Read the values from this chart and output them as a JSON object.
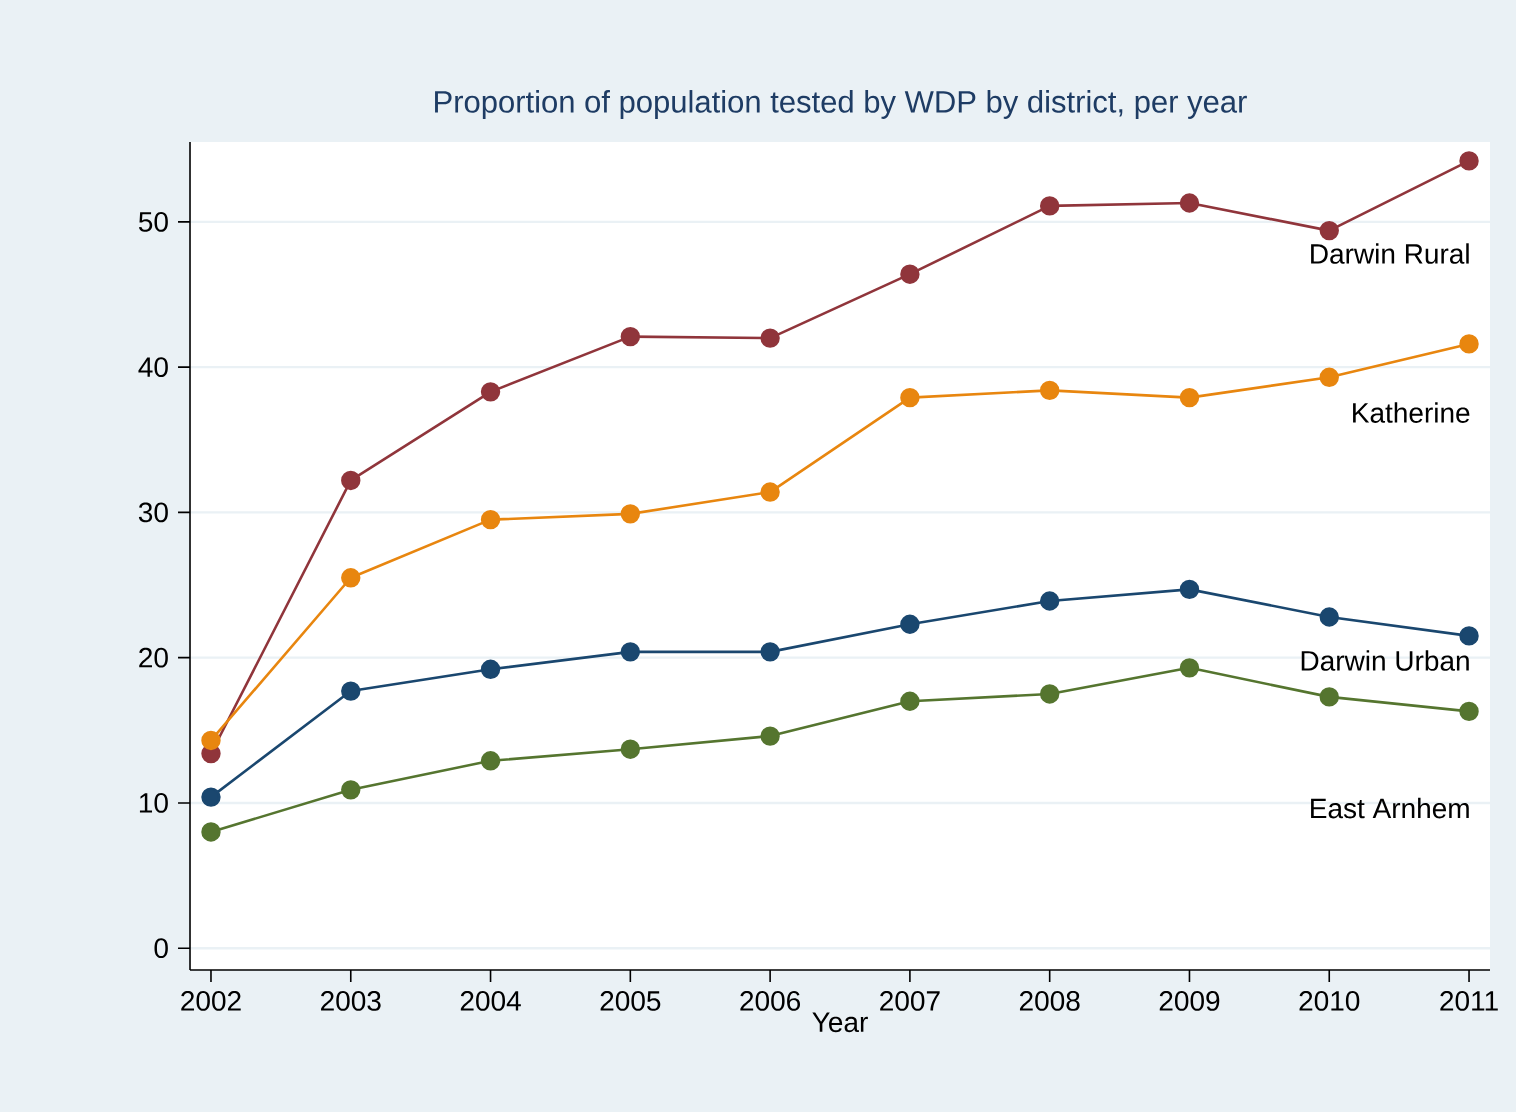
{
  "chart_data": {
    "type": "line",
    "title": "Proportion of population tested by WDP by district, per year",
    "xlabel": "Year",
    "x": [
      2002,
      2003,
      2004,
      2005,
      2006,
      2007,
      2008,
      2009,
      2010,
      2011
    ],
    "series": [
      {
        "name": "Darwin Rural",
        "color": "#90353b",
        "values": [
          13.4,
          32.2,
          38.3,
          42.1,
          42.0,
          46.4,
          51.1,
          51.3,
          49.4,
          54.2
        ]
      },
      {
        "name": "Katherine",
        "color": "#e8860f",
        "values": [
          14.3,
          25.5,
          29.5,
          29.9,
          31.4,
          37.9,
          38.4,
          37.9,
          39.3,
          41.6
        ]
      },
      {
        "name": "Darwin Urban",
        "color": "#1a476f",
        "values": [
          10.4,
          17.7,
          19.2,
          20.4,
          20.4,
          22.3,
          23.9,
          24.7,
          22.8,
          21.5
        ]
      },
      {
        "name": "East Arnhem",
        "color": "#55752f",
        "values": [
          8.0,
          10.9,
          12.9,
          13.7,
          14.6,
          17.0,
          17.5,
          19.3,
          17.3,
          16.3
        ]
      }
    ],
    "xlim": [
      2001.85,
      2011.15
    ],
    "ylim": [
      -1.5,
      55.5
    ],
    "xticks": [
      2002,
      2003,
      2004,
      2005,
      2006,
      2007,
      2008,
      2009,
      2010,
      2011
    ],
    "yticks": [
      0,
      10,
      20,
      30,
      40,
      50
    ],
    "grid": "y",
    "legend": false,
    "marker": "circle",
    "line_style": "solid"
  }
}
